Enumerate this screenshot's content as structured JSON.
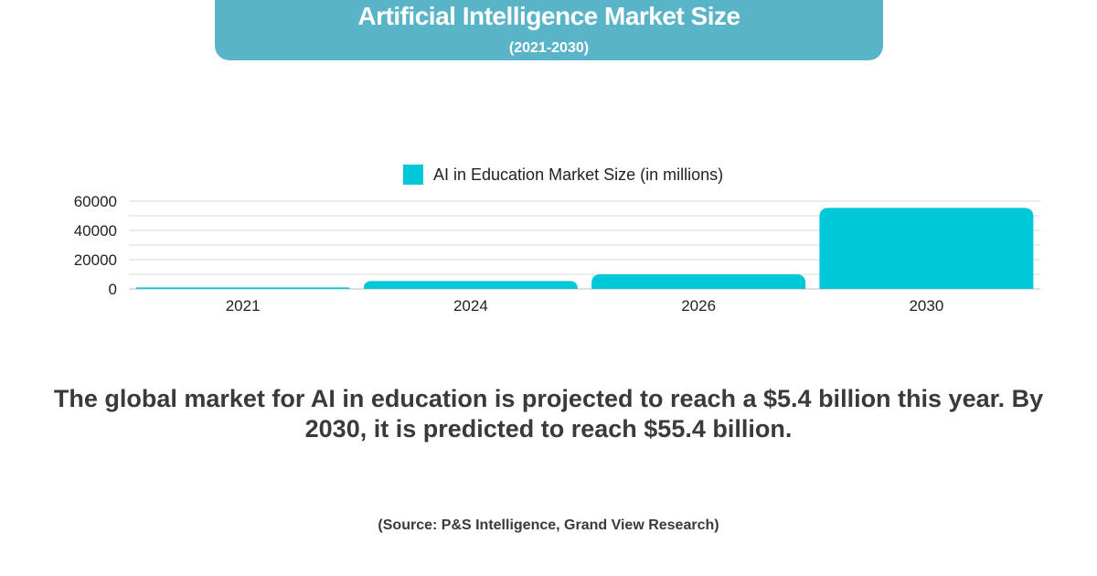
{
  "header": {
    "title": "Artificial Intelligence Market Size",
    "subtitle": "(2021-2030)"
  },
  "chart_data": {
    "type": "bar",
    "title": "",
    "xlabel": "",
    "ylabel": "",
    "categories": [
      "2021",
      "2024",
      "2026",
      "2030"
    ],
    "series": [
      {
        "name": "AI in Education Market Size (in millions)",
        "values": [
          1000,
          5400,
          10000,
          55400
        ]
      }
    ],
    "ylim": [
      0,
      60000
    ],
    "yticks": [
      0,
      20000,
      40000,
      60000
    ],
    "bar_color": "#00c8d8",
    "grid": true,
    "legend_position": "top-center"
  },
  "description": "The global market for AI in education is projected to reach a $5.4 billion this year. By 2030, it is predicted to reach $55.4 billion.",
  "source": "(Source:  P&S Intelligence, Grand View Research)"
}
